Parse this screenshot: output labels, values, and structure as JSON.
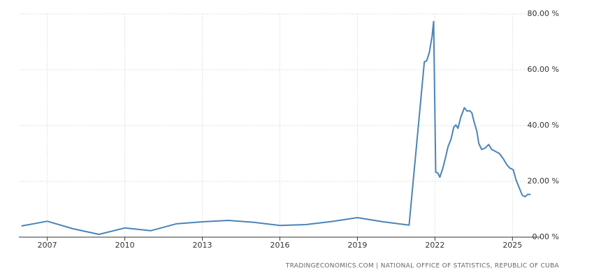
{
  "chart_data": {
    "type": "line",
    "source": "TRADINGECONOMICS.COM | NATIONAL OFFICE OF STATISTICS, REPUBLIC OF CUBA",
    "x": [
      2006,
      2007,
      2008,
      2009,
      2010,
      2011,
      2012,
      2013,
      2014,
      2015,
      2016,
      2017,
      2018,
      2019,
      2020,
      2021,
      2021.59,
      2021.68,
      2021.78,
      2021.89,
      2021.95,
      2022.03,
      2022.11,
      2022.19,
      2022.3,
      2022.41,
      2022.51,
      2022.62,
      2022.73,
      2022.81,
      2022.89,
      2023.0,
      2023.14,
      2023.24,
      2023.35,
      2023.43,
      2023.51,
      2023.62,
      2023.7,
      2023.81,
      2023.95,
      2024.08,
      2024.19,
      2024.35,
      2024.49,
      2024.65,
      2024.78,
      2024.89,
      2025.03,
      2025.14,
      2025.27,
      2025.38,
      2025.49,
      2025.59,
      2025.7
    ],
    "series": [
      {
        "color": "#4a84b8",
        "values": [
          4.0,
          5.7,
          3.0,
          1.0,
          3.3,
          2.3,
          4.8,
          5.5,
          6.0,
          5.3,
          4.2,
          4.5,
          5.6,
          7.0,
          5.5,
          4.3,
          62.8,
          63.2,
          66.0,
          72.0,
          77.3,
          23.3,
          23.0,
          21.5,
          24.5,
          28.5,
          32.5,
          35.0,
          39.5,
          40.2,
          39.0,
          43.0,
          46.4,
          45.2,
          45.3,
          44.5,
          41.5,
          38.0,
          33.5,
          31.4,
          32.0,
          33.2,
          31.5,
          30.7,
          30.0,
          28.0,
          26.0,
          24.8,
          24.2,
          20.5,
          17.5,
          15.0,
          14.5,
          15.3,
          15.3
        ]
      }
    ],
    "xlim": [
      2005.9,
      2026.1
    ],
    "xticks": [
      2007,
      2010,
      2013,
      2016,
      2019,
      2022,
      2025
    ],
    "ylim": [
      0,
      80
    ],
    "yticks": [
      {
        "value": 0,
        "label": "0.00 %"
      },
      {
        "value": 20,
        "label": "20.00 %"
      },
      {
        "value": 40,
        "label": "40.00 %"
      },
      {
        "value": 60,
        "label": "60.00 %"
      },
      {
        "value": 80,
        "label": "80.00 %"
      }
    ],
    "grid": true
  }
}
